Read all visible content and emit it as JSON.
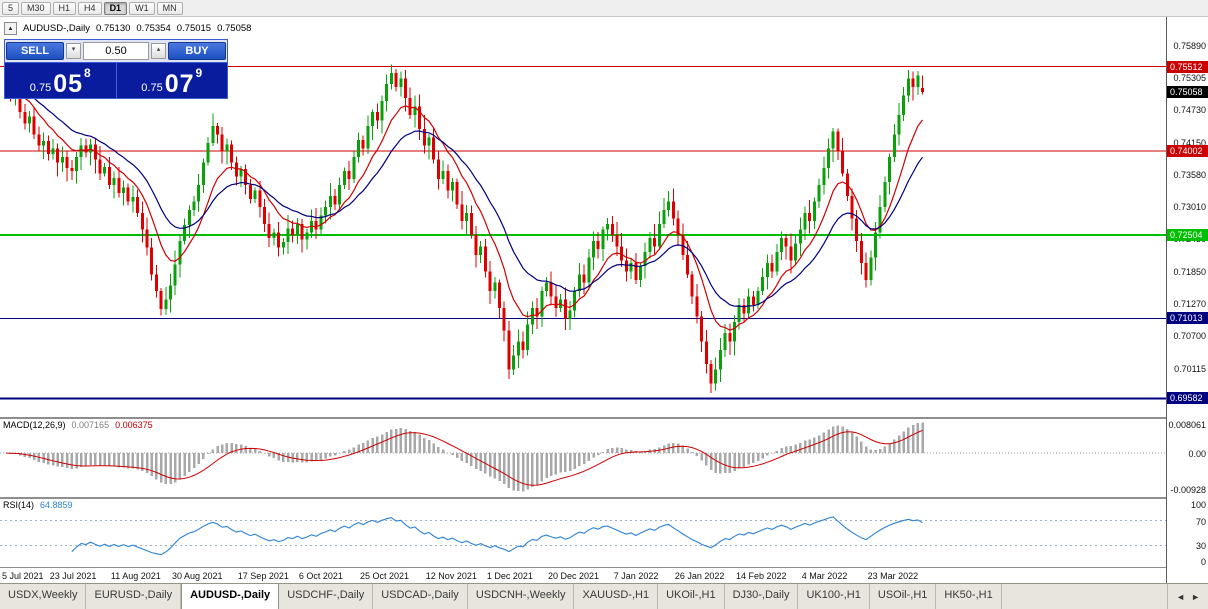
{
  "icons": {
    "collapse": "▲",
    "spinner_up": "▴",
    "spinner_down": "▾",
    "tab_prev": "◄",
    "tab_next": "►"
  },
  "toolbar": {
    "timeframes": [
      "5",
      "M30",
      "H1",
      "H4",
      "D1",
      "W1",
      "MN"
    ],
    "active_timeframe": "D1"
  },
  "chart_header": {
    "symbol": "AUDUSD-,Daily",
    "open": "0.75130",
    "high": "0.75354",
    "low": "0.75015",
    "close": "0.75058"
  },
  "trade_panel": {
    "sell_label": "SELL",
    "buy_label": "BUY",
    "volume": "0.50",
    "sell_price": {
      "prefix": "0.75",
      "big": "05",
      "sup": "8"
    },
    "buy_price": {
      "prefix": "0.75",
      "big": "07",
      "sup": "9"
    }
  },
  "macd_panel": {
    "title": "MACD(12,26,9)",
    "value_main": "0.007165",
    "value_signal": "0.006375",
    "axis_labels": [
      "0.008061",
      "0.00",
      "-0.00928"
    ]
  },
  "rsi_panel": {
    "title": "RSI(14)",
    "value": "64.8859",
    "axis_values": [
      100,
      70,
      30,
      0
    ]
  },
  "tabs": {
    "items": [
      "USDX,Weekly",
      "EURUSD-,Daily",
      "AUDUSD-,Daily",
      "USDCHF-,Daily",
      "USDCAD-,Daily",
      "USDCNH-,Weekly",
      "XAUUSD-,H1",
      "UKOil-,H1",
      "DJ30-,Daily",
      "UK100-,H1",
      "USOil-,H1",
      "HK50-,H1"
    ],
    "active_index": 2
  },
  "chart_data": {
    "type": "candlestick",
    "symbol": "AUDUSD",
    "timeframe": "Daily",
    "y_range": [
      0.6925,
      0.764
    ],
    "y_ticks": [
      0.7589,
      0.75305,
      0.7473,
      0.7415,
      0.7358,
      0.7301,
      0.7243,
      0.7185,
      0.7127,
      0.707,
      0.70115,
      0.6954
    ],
    "x_labels": [
      {
        "text": "5 Jul 2021",
        "i": 0
      },
      {
        "text": "23 Jul 2021",
        "i": 14
      },
      {
        "text": "11 Aug 2021",
        "i": 27
      },
      {
        "text": "30 Aug 2021",
        "i": 40
      },
      {
        "text": "17 Sep 2021",
        "i": 54
      },
      {
        "text": "6 Oct 2021",
        "i": 67
      },
      {
        "text": "25 Oct 2021",
        "i": 80
      },
      {
        "text": "12 Nov 2021",
        "i": 94
      },
      {
        "text": "1 Dec 2021",
        "i": 107
      },
      {
        "text": "20 Dec 2021",
        "i": 120
      },
      {
        "text": "7 Jan 2022",
        "i": 134
      },
      {
        "text": "26 Jan 2022",
        "i": 147
      },
      {
        "text": "14 Feb 2022",
        "i": 160
      },
      {
        "text": "4 Mar 2022",
        "i": 174
      },
      {
        "text": "23 Mar 2022",
        "i": 188
      }
    ],
    "first_open": 0.754,
    "closes": [
      0.7518,
      0.7495,
      0.7505,
      0.747,
      0.745,
      0.7462,
      0.743,
      0.741,
      0.7418,
      0.7395,
      0.7405,
      0.738,
      0.739,
      0.737,
      0.7365,
      0.739,
      0.741,
      0.7398,
      0.7412,
      0.7385,
      0.736,
      0.7372,
      0.734,
      0.7352,
      0.7325,
      0.7335,
      0.731,
      0.7318,
      0.729,
      0.726,
      0.7228,
      0.718,
      0.715,
      0.7118,
      0.7135,
      0.716,
      0.7198,
      0.724,
      0.7268,
      0.7295,
      0.731,
      0.734,
      0.738,
      0.7415,
      0.7445,
      0.743,
      0.74,
      0.7412,
      0.738,
      0.7355,
      0.7368,
      0.734,
      0.7315,
      0.733,
      0.73,
      0.727,
      0.7245,
      0.7255,
      0.7228,
      0.7238,
      0.7262,
      0.725,
      0.727,
      0.7242,
      0.7255,
      0.7275,
      0.726,
      0.7285,
      0.73,
      0.732,
      0.7305,
      0.734,
      0.7365,
      0.735,
      0.739,
      0.742,
      0.7405,
      0.7445,
      0.747,
      0.7455,
      0.749,
      0.752,
      0.754,
      0.7515,
      0.753,
      0.7495,
      0.7465,
      0.748,
      0.744,
      0.741,
      0.7425,
      0.7385,
      0.735,
      0.7365,
      0.733,
      0.7345,
      0.7305,
      0.7275,
      0.729,
      0.725,
      0.7215,
      0.723,
      0.7185,
      0.715,
      0.7165,
      0.712,
      0.708,
      0.701,
      0.7035,
      0.706,
      0.7045,
      0.709,
      0.712,
      0.7105,
      0.715,
      0.7165,
      0.714,
      0.712,
      0.7135,
      0.71,
      0.7115,
      0.715,
      0.718,
      0.7165,
      0.721,
      0.724,
      0.7225,
      0.726,
      0.727,
      0.725,
      0.723,
      0.7205,
      0.7185,
      0.72,
      0.717,
      0.7195,
      0.722,
      0.7245,
      0.723,
      0.727,
      0.7295,
      0.731,
      0.728,
      0.725,
      0.7215,
      0.718,
      0.714,
      0.7105,
      0.706,
      0.702,
      0.6985,
      0.701,
      0.7045,
      0.7075,
      0.706,
      0.7095,
      0.7125,
      0.711,
      0.714,
      0.7125,
      0.715,
      0.7175,
      0.72,
      0.7185,
      0.722,
      0.7245,
      0.723,
      0.7205,
      0.7235,
      0.726,
      0.729,
      0.7275,
      0.731,
      0.734,
      0.737,
      0.7405,
      0.7435,
      0.74,
      0.736,
      0.732,
      0.728,
      0.724,
      0.72,
      0.717,
      0.721,
      0.7255,
      0.73,
      0.7345,
      0.739,
      0.743,
      0.7465,
      0.75,
      0.753,
      0.7515,
      0.7535,
      0.75058
    ],
    "wick_overrides": {
      "0": {
        "high": 0.7552
      },
      "33": {
        "low": 0.7106
      },
      "82": {
        "high": 0.7555
      },
      "107": {
        "low": 0.6993
      },
      "150": {
        "low": 0.6968
      },
      "176": {
        "high": 0.7442
      },
      "195": {
        "open": 0.7513,
        "high": 0.75354,
        "low": 0.75015
      }
    },
    "last_candle": {
      "open": 0.7513,
      "high": 0.75354,
      "low": 0.75015,
      "close": 0.75058
    },
    "current_price": 0.75058,
    "levels": [
      {
        "price": 0.75512,
        "color": "#CC0000",
        "width": 1
      },
      {
        "price": 0.74002,
        "color": "#CC0000",
        "width": 1
      },
      {
        "price": 0.72504,
        "color": "#00BE00",
        "width": 2
      },
      {
        "price": 0.71013,
        "color": "#000080",
        "width": 1
      },
      {
        "price": 0.69582,
        "color": "#000080",
        "width": 2
      }
    ],
    "colors": {
      "up": "#0AA00A",
      "down": "#DE0000",
      "ma_fast": "#D00000",
      "ma_slow": "#000080",
      "macd_hist": "#A8A8A8",
      "macd_signal": "#D00000",
      "rsi": "#2C82D8"
    },
    "indicators": {
      "ma_fast_period": 10,
      "ma_slow_period": 21,
      "macd": [
        12,
        26,
        9
      ],
      "rsi_period": 14,
      "rsi_levels": [
        70,
        30
      ]
    }
  }
}
